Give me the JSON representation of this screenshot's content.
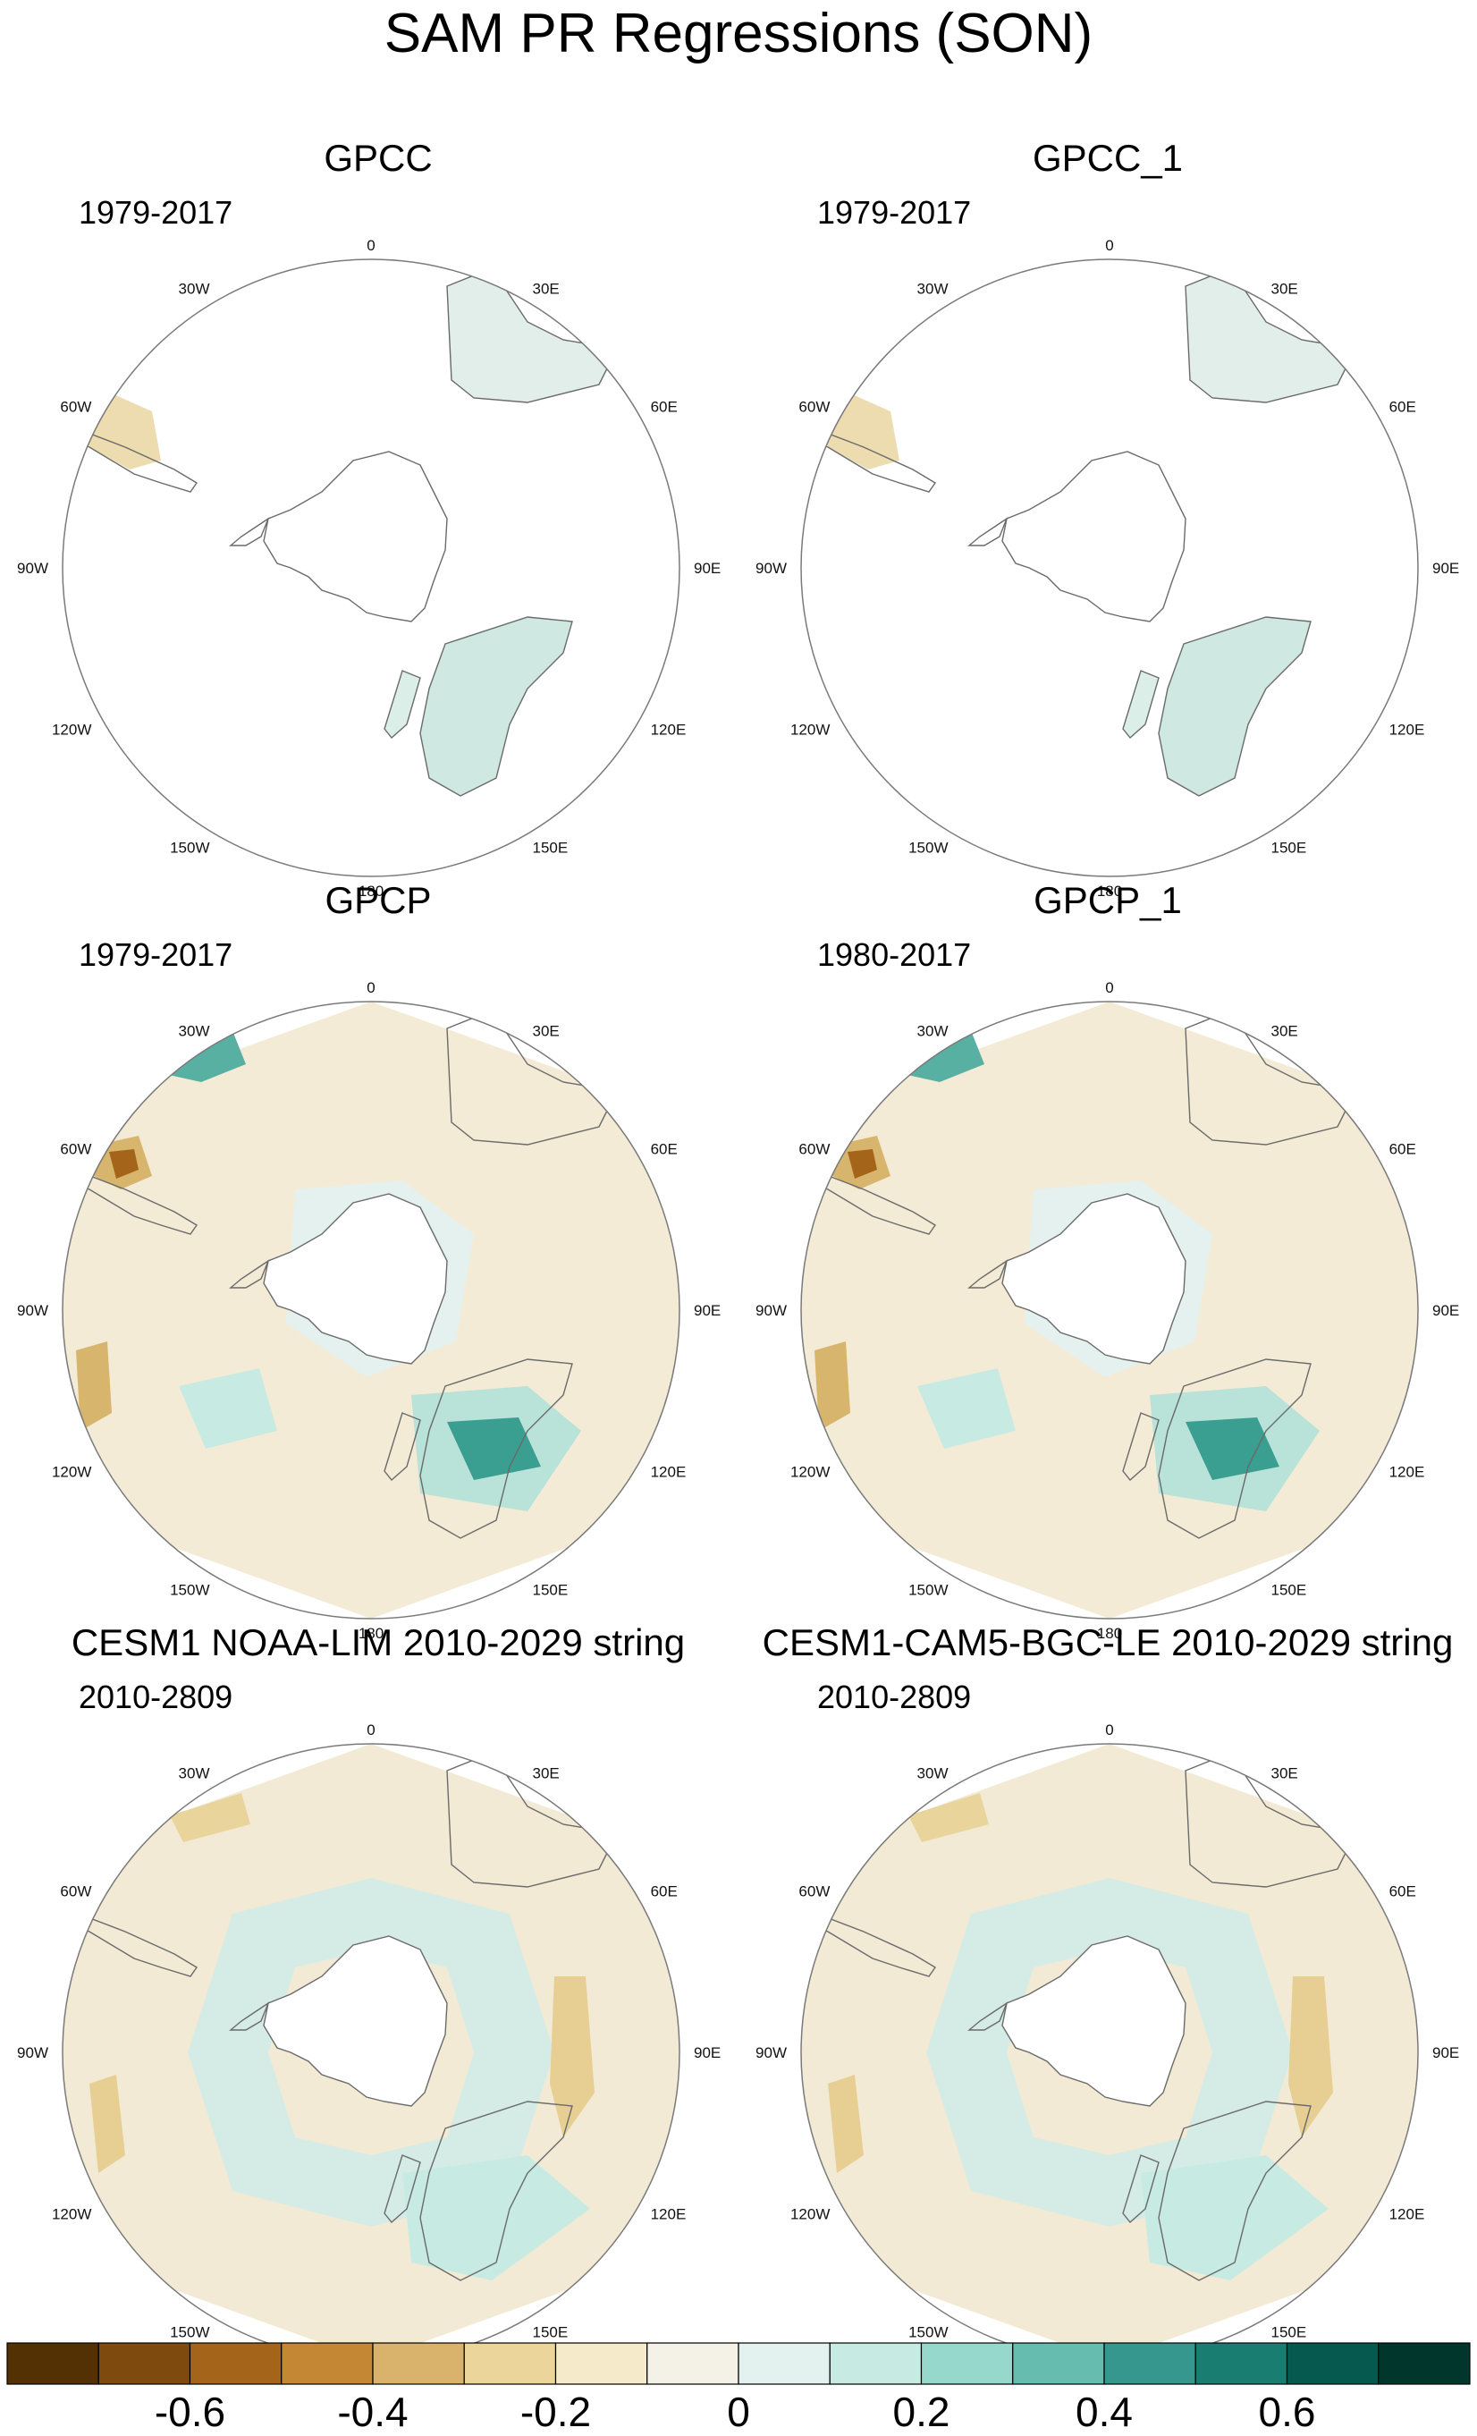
{
  "title": "SAM PR Regressions (SON)",
  "longitude_labels": [
    "0",
    "30E",
    "60E",
    "90E",
    "120E",
    "150E",
    "180",
    "150W",
    "120W",
    "90W",
    "60W",
    "30W"
  ],
  "panels": [
    {
      "title": "GPCC",
      "period": "1979-2017",
      "style": "land"
    },
    {
      "title": "GPCC_1",
      "period": "1979-2017",
      "style": "land"
    },
    {
      "title": "GPCP",
      "period": "1979-2017",
      "style": "obs"
    },
    {
      "title": "GPCP_1",
      "period": "1980-2017",
      "style": "obs"
    },
    {
      "title": "CESM1 NOAA-LIM 2010-2029 string",
      "period": "2010-2809",
      "style": "model"
    },
    {
      "title": "CESM1-CAM5-BGC-LE 2010-2029 string",
      "period": "2010-2809",
      "style": "model"
    }
  ],
  "colorbar": {
    "colors": [
      "#543005",
      "#7e4a0e",
      "#a46419",
      "#c48835",
      "#d9b36b",
      "#ebd59b",
      "#f5ebcb",
      "#f4f1e6",
      "#e3f1ef",
      "#c7ebe3",
      "#97d8cc",
      "#66bcae",
      "#36978e",
      "#197d72",
      "#05594e",
      "#01362c"
    ],
    "tick_labels": [
      "-0.6",
      "-0.4",
      "-0.2",
      "0",
      "0.2",
      "0.4",
      "0.6"
    ]
  }
}
